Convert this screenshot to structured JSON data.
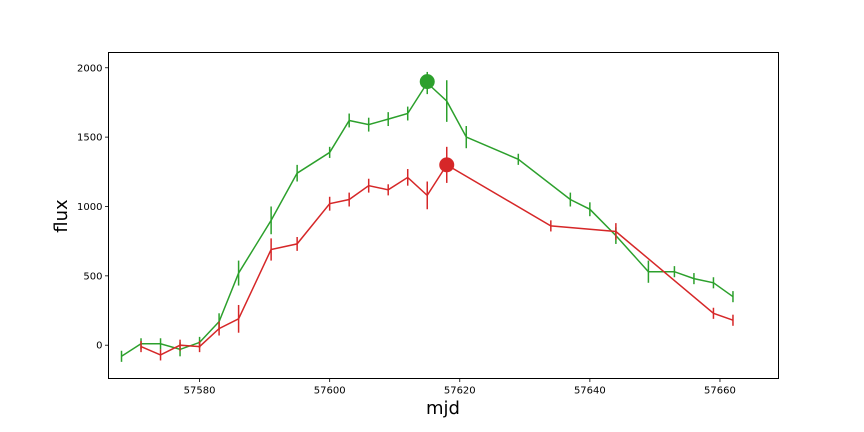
{
  "chart_data": {
    "type": "line",
    "title": "",
    "xlabel": "mjd",
    "ylabel": "flux",
    "xlim": [
      57566,
      57669
    ],
    "ylim": [
      -240,
      2110
    ],
    "xticks": [
      57580,
      57600,
      57620,
      57640,
      57660
    ],
    "yticks": [
      0,
      500,
      1000,
      1500,
      2000
    ],
    "grid": false,
    "series": [
      {
        "color": "#2ca02c",
        "x": [
          57568,
          57571,
          57574,
          57577,
          57580,
          57583,
          57586,
          57591,
          57595,
          57600,
          57603,
          57606,
          57609,
          57612,
          57615,
          57618,
          57621,
          57629,
          57637,
          57640,
          57644,
          57649,
          57653,
          57656,
          57659,
          57662
        ],
        "y": [
          -80,
          10,
          10,
          -30,
          20,
          170,
          520,
          900,
          1240,
          1390,
          1620,
          1590,
          1630,
          1670,
          1890,
          1760,
          1500,
          1340,
          1050,
          980,
          790,
          530,
          530,
          480,
          450,
          350
        ],
        "err": [
          40,
          40,
          40,
          50,
          40,
          60,
          90,
          100,
          60,
          40,
          50,
          50,
          50,
          50,
          80,
          150,
          80,
          40,
          50,
          50,
          60,
          80,
          40,
          40,
          40,
          40
        ],
        "peak": {
          "x": 57615,
          "y": 1900
        }
      },
      {
        "color": "#d62728",
        "x": [
          57571,
          57574,
          57577,
          57580,
          57583,
          57586,
          57591,
          57595,
          57600,
          57603,
          57606,
          57609,
          57612,
          57615,
          57618,
          57634,
          57644,
          57659,
          57662
        ],
        "y": [
          -10,
          -70,
          0,
          -10,
          120,
          190,
          690,
          730,
          1020,
          1050,
          1150,
          1120,
          1210,
          1080,
          1300,
          860,
          820,
          230,
          180
        ],
        "err": [
          40,
          40,
          40,
          40,
          50,
          100,
          80,
          50,
          50,
          50,
          50,
          40,
          60,
          100,
          130,
          40,
          60,
          40,
          40
        ],
        "peak": {
          "x": 57618,
          "y": 1300
        }
      }
    ]
  }
}
